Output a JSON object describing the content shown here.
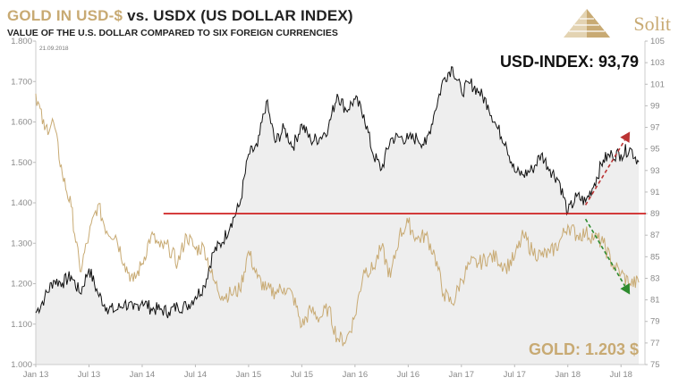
{
  "header": {
    "title_gold": "GOLD IN USD-$",
    "title_rest": " vs. USDX (US DOLLAR INDEX)",
    "subtitle": "VALUE OF THE U.S. DOLLAR COMPARED TO SIX FOREIGN CURRENCIES",
    "logo_text": "Solit"
  },
  "chart_data": {
    "type": "line",
    "date_stamp": "21.09.2018",
    "x_ticks": [
      "Jan 13",
      "Jul 13",
      "Jan 14",
      "Jul 14",
      "Jan 15",
      "Jul 15",
      "Jan 16",
      "Jul 16",
      "Jan 17",
      "Jul 17",
      "Jan 18",
      "Jul 18"
    ],
    "x_range": [
      "Jan 13",
      "Sep 18"
    ],
    "y_left_ticks": [
      "1.000",
      "1.100",
      "1.200",
      "1.300",
      "1.400",
      "1.500",
      "1.600",
      "1.700",
      "1.800"
    ],
    "y_left_range": [
      1000,
      1800
    ],
    "y_right_ticks": [
      "75",
      "77",
      "79",
      "81",
      "83",
      "85",
      "87",
      "89",
      "91",
      "93",
      "95",
      "97",
      "99",
      "101",
      "103",
      "105"
    ],
    "y_right_range": [
      75,
      105
    ],
    "series": [
      {
        "name": "USD-INDEX",
        "axis": "right",
        "color": "#111111",
        "fill": "#eeeeee",
        "points": [
          [
            "Jan 13",
            79.8
          ],
          [
            "Feb 13",
            81.2
          ],
          [
            "Mar 13",
            82.8
          ],
          [
            "Apr 13",
            82.6
          ],
          [
            "May 13",
            83.2
          ],
          [
            "Jun 13",
            81.6
          ],
          [
            "Jul 13",
            83.9
          ],
          [
            "Aug 13",
            81.6
          ],
          [
            "Sep 13",
            80.3
          ],
          [
            "Oct 13",
            80.0
          ],
          [
            "Nov 13",
            80.7
          ],
          [
            "Dec 13",
            80.1
          ],
          [
            "Jan 14",
            80.9
          ],
          [
            "Feb 14",
            80.2
          ],
          [
            "Mar 14",
            80.1
          ],
          [
            "Apr 14",
            79.9
          ],
          [
            "May 14",
            80.4
          ],
          [
            "Jun 14",
            80.4
          ],
          [
            "Jul 14",
            81.3
          ],
          [
            "Aug 14",
            82.3
          ],
          [
            "Sep 14",
            85.4
          ],
          [
            "Oct 14",
            86.3
          ],
          [
            "Nov 14",
            88.1
          ],
          [
            "Dec 14",
            89.8
          ],
          [
            "Jan 15",
            94.5
          ],
          [
            "Feb 15",
            95.2
          ],
          [
            "Mar 15",
            99.4
          ],
          [
            "Apr 15",
            95.6
          ],
          [
            "May 15",
            96.9
          ],
          [
            "Jun 15",
            95.2
          ],
          [
            "Jul 15",
            97.3
          ],
          [
            "Aug 15",
            95.8
          ],
          [
            "Sep 15",
            96.0
          ],
          [
            "Oct 15",
            97.0
          ],
          [
            "Nov 15",
            100.1
          ],
          [
            "Dec 15",
            98.6
          ],
          [
            "Jan 16",
            99.6
          ],
          [
            "Feb 16",
            98.2
          ],
          [
            "Mar 16",
            94.6
          ],
          [
            "Apr 16",
            93.1
          ],
          [
            "May 16",
            95.9
          ],
          [
            "Jun 16",
            96.1
          ],
          [
            "Jul 16",
            95.9
          ],
          [
            "Aug 16",
            96.0
          ],
          [
            "Sep 16",
            95.4
          ],
          [
            "Oct 16",
            98.5
          ],
          [
            "Nov 16",
            101.5
          ],
          [
            "Dec 16",
            102.6
          ],
          [
            "Jan 17",
            100.3
          ],
          [
            "Feb 17",
            101.1
          ],
          [
            "Mar 17",
            100.3
          ],
          [
            "Apr 17",
            99.1
          ],
          [
            "May 17",
            97.0
          ],
          [
            "Jun 17",
            95.6
          ],
          [
            "Jul 17",
            92.9
          ],
          [
            "Aug 17",
            92.6
          ],
          [
            "Sep 17",
            93.1
          ],
          [
            "Oct 17",
            94.5
          ],
          [
            "Nov 17",
            93.1
          ],
          [
            "Dec 17",
            92.1
          ],
          [
            "Jan 18",
            89.1
          ],
          [
            "Feb 18",
            90.6
          ],
          [
            "Mar 18",
            90.1
          ],
          [
            "Apr 18",
            91.8
          ],
          [
            "May 18",
            94.0
          ],
          [
            "Jun 18",
            94.5
          ],
          [
            "Jul 18",
            94.5
          ],
          [
            "Aug 18",
            95.1
          ],
          [
            "Sep 18",
            93.79
          ]
        ]
      },
      {
        "name": "GOLD",
        "axis": "left",
        "color": "#c8aa73",
        "points": [
          [
            "Jan 13",
            1670
          ],
          [
            "Feb 13",
            1580
          ],
          [
            "Mar 13",
            1600
          ],
          [
            "Apr 13",
            1470
          ],
          [
            "May 13",
            1390
          ],
          [
            "Jun 13",
            1230
          ],
          [
            "Jul 13",
            1320
          ],
          [
            "Aug 13",
            1395
          ],
          [
            "Sep 13",
            1330
          ],
          [
            "Oct 13",
            1320
          ],
          [
            "Nov 13",
            1250
          ],
          [
            "Dec 13",
            1205
          ],
          [
            "Jan 14",
            1250
          ],
          [
            "Feb 14",
            1320
          ],
          [
            "Mar 14",
            1290
          ],
          [
            "Apr 14",
            1290
          ],
          [
            "May 14",
            1250
          ],
          [
            "Jun 14",
            1320
          ],
          [
            "Jul 14",
            1285
          ],
          [
            "Aug 14",
            1290
          ],
          [
            "Sep 14",
            1210
          ],
          [
            "Oct 14",
            1170
          ],
          [
            "Nov 14",
            1175
          ],
          [
            "Dec 14",
            1185
          ],
          [
            "Jan 15",
            1280
          ],
          [
            "Feb 15",
            1215
          ],
          [
            "Mar 15",
            1185
          ],
          [
            "Apr 15",
            1180
          ],
          [
            "May 15",
            1190
          ],
          [
            "Jun 15",
            1170
          ],
          [
            "Jul 15",
            1095
          ],
          [
            "Aug 15",
            1135
          ],
          [
            "Sep 15",
            1115
          ],
          [
            "Oct 15",
            1140
          ],
          [
            "Nov 15",
            1065
          ],
          [
            "Dec 15",
            1060
          ],
          [
            "Jan 16",
            1120
          ],
          [
            "Feb 16",
            1235
          ],
          [
            "Mar 16",
            1235
          ],
          [
            "Apr 16",
            1290
          ],
          [
            "May 16",
            1215
          ],
          [
            "Jun 16",
            1320
          ],
          [
            "Jul 16",
            1350
          ],
          [
            "Aug 16",
            1310
          ],
          [
            "Sep 16",
            1320
          ],
          [
            "Oct 16",
            1270
          ],
          [
            "Nov 16",
            1175
          ],
          [
            "Dec 16",
            1150
          ],
          [
            "Jan 17",
            1210
          ],
          [
            "Feb 17",
            1250
          ],
          [
            "Mar 17",
            1250
          ],
          [
            "Apr 17",
            1265
          ],
          [
            "May 17",
            1265
          ],
          [
            "Jun 17",
            1240
          ],
          [
            "Jul 17",
            1265
          ],
          [
            "Aug 17",
            1320
          ],
          [
            "Sep 17",
            1280
          ],
          [
            "Oct 17",
            1270
          ],
          [
            "Nov 17",
            1275
          ],
          [
            "Dec 17",
            1300
          ],
          [
            "Jan 18",
            1345
          ],
          [
            "Feb 18",
            1320
          ],
          [
            "Mar 18",
            1325
          ],
          [
            "Apr 18",
            1315
          ],
          [
            "May 18",
            1300
          ],
          [
            "Jun 18",
            1250
          ],
          [
            "Jul 18",
            1225
          ],
          [
            "Aug 18",
            1200
          ],
          [
            "Sep 18",
            1203
          ]
        ]
      }
    ],
    "reference_line": {
      "axis": "right",
      "value": 89.0,
      "start": "Mar 14",
      "end": "Sep 18",
      "color": "#cc1111"
    },
    "arrows": [
      {
        "color": "#bb3333",
        "from": [
          "Mar 18",
          89.8
        ],
        "to": [
          "Aug 18",
          96.6
        ]
      },
      {
        "color": "#2e8b2e",
        "from": [
          "Mar 18",
          88.5
        ],
        "to": [
          "Aug 18",
          81.5
        ]
      }
    ],
    "annotations": {
      "usd_label": "USD-INDEX: 93,79",
      "gold_label": "GOLD: 1.203 $"
    },
    "grid": false
  }
}
